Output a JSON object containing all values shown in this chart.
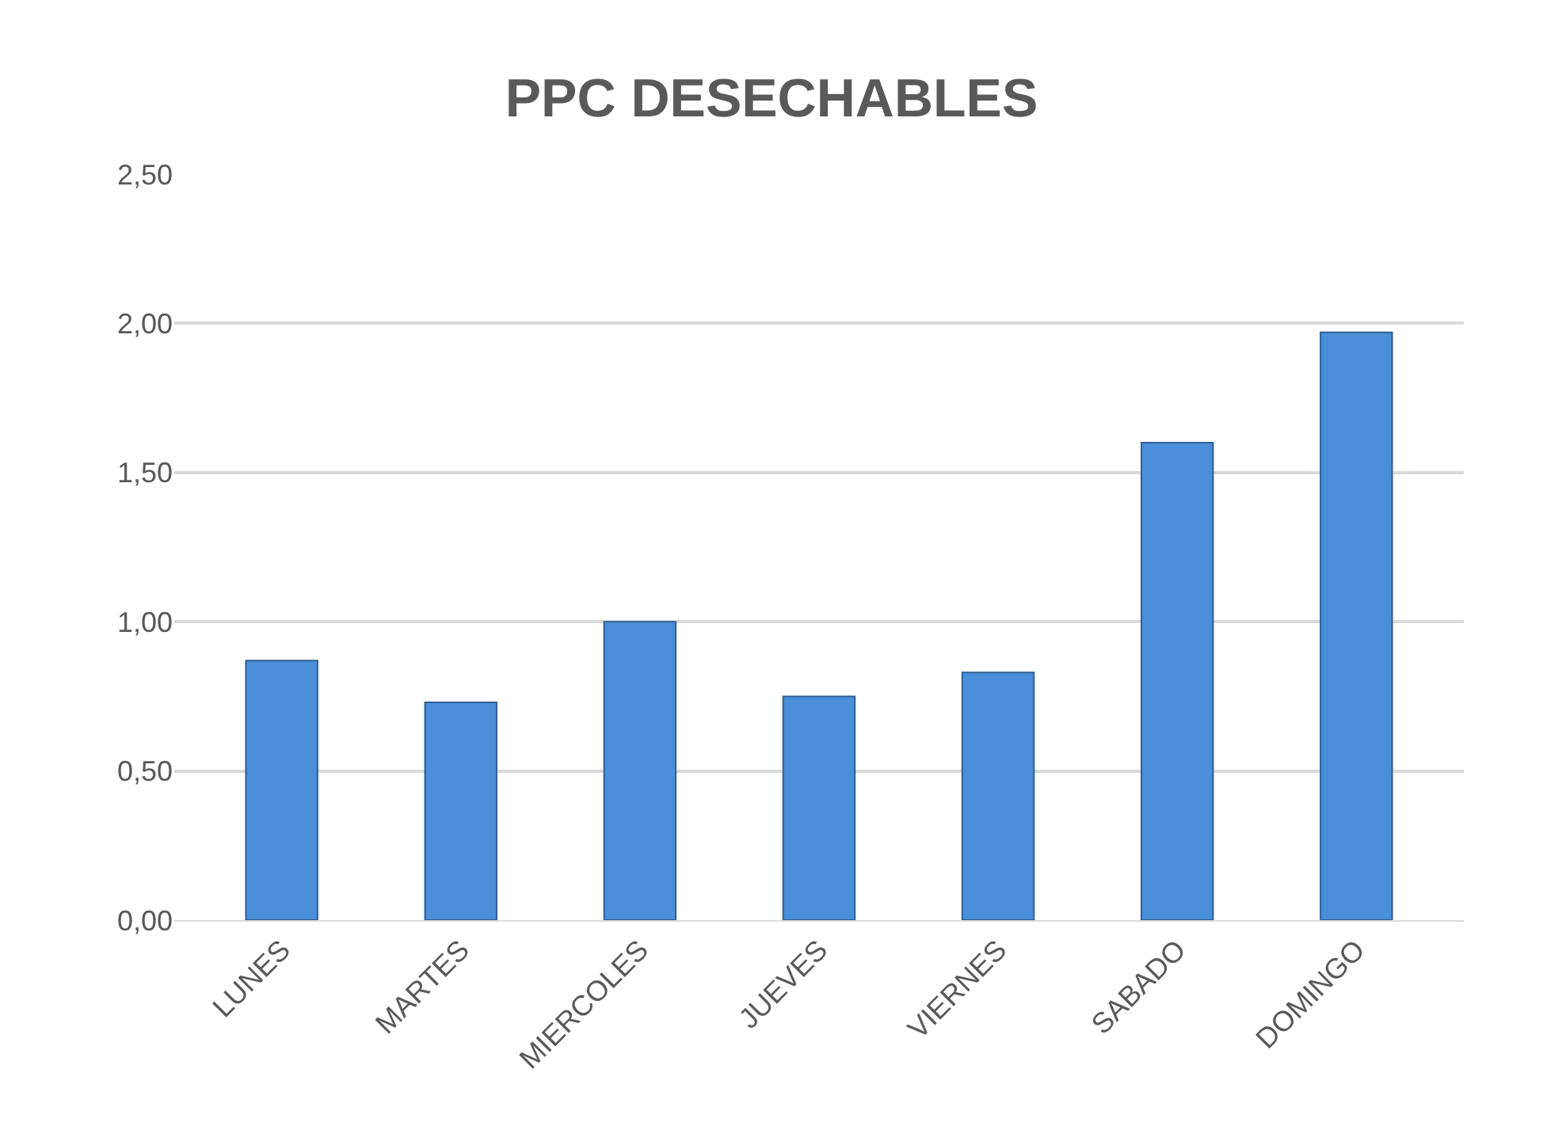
{
  "chart_data": {
    "type": "bar",
    "title": "PPC DESECHABLES",
    "categories": [
      "LUNES",
      "MARTES",
      "MIERCOLES",
      "JUEVES",
      "VIERNES",
      "SABADO",
      "DOMINGO"
    ],
    "values": [
      0.87,
      0.73,
      1.0,
      0.75,
      0.83,
      1.6,
      1.97
    ],
    "color": "#4a8fd8",
    "ylim": [
      0,
      2.5
    ],
    "yticks": [
      {
        "value": 0,
        "label": "0,00"
      },
      {
        "value": 0.5,
        "label": "0,50"
      },
      {
        "value": 1,
        "label": "1,00"
      },
      {
        "value": 1.5,
        "label": "1,50"
      },
      {
        "value": 2,
        "label": "2,00"
      },
      {
        "value": 2.5,
        "label": "2,50"
      }
    ],
    "grid": "y"
  }
}
